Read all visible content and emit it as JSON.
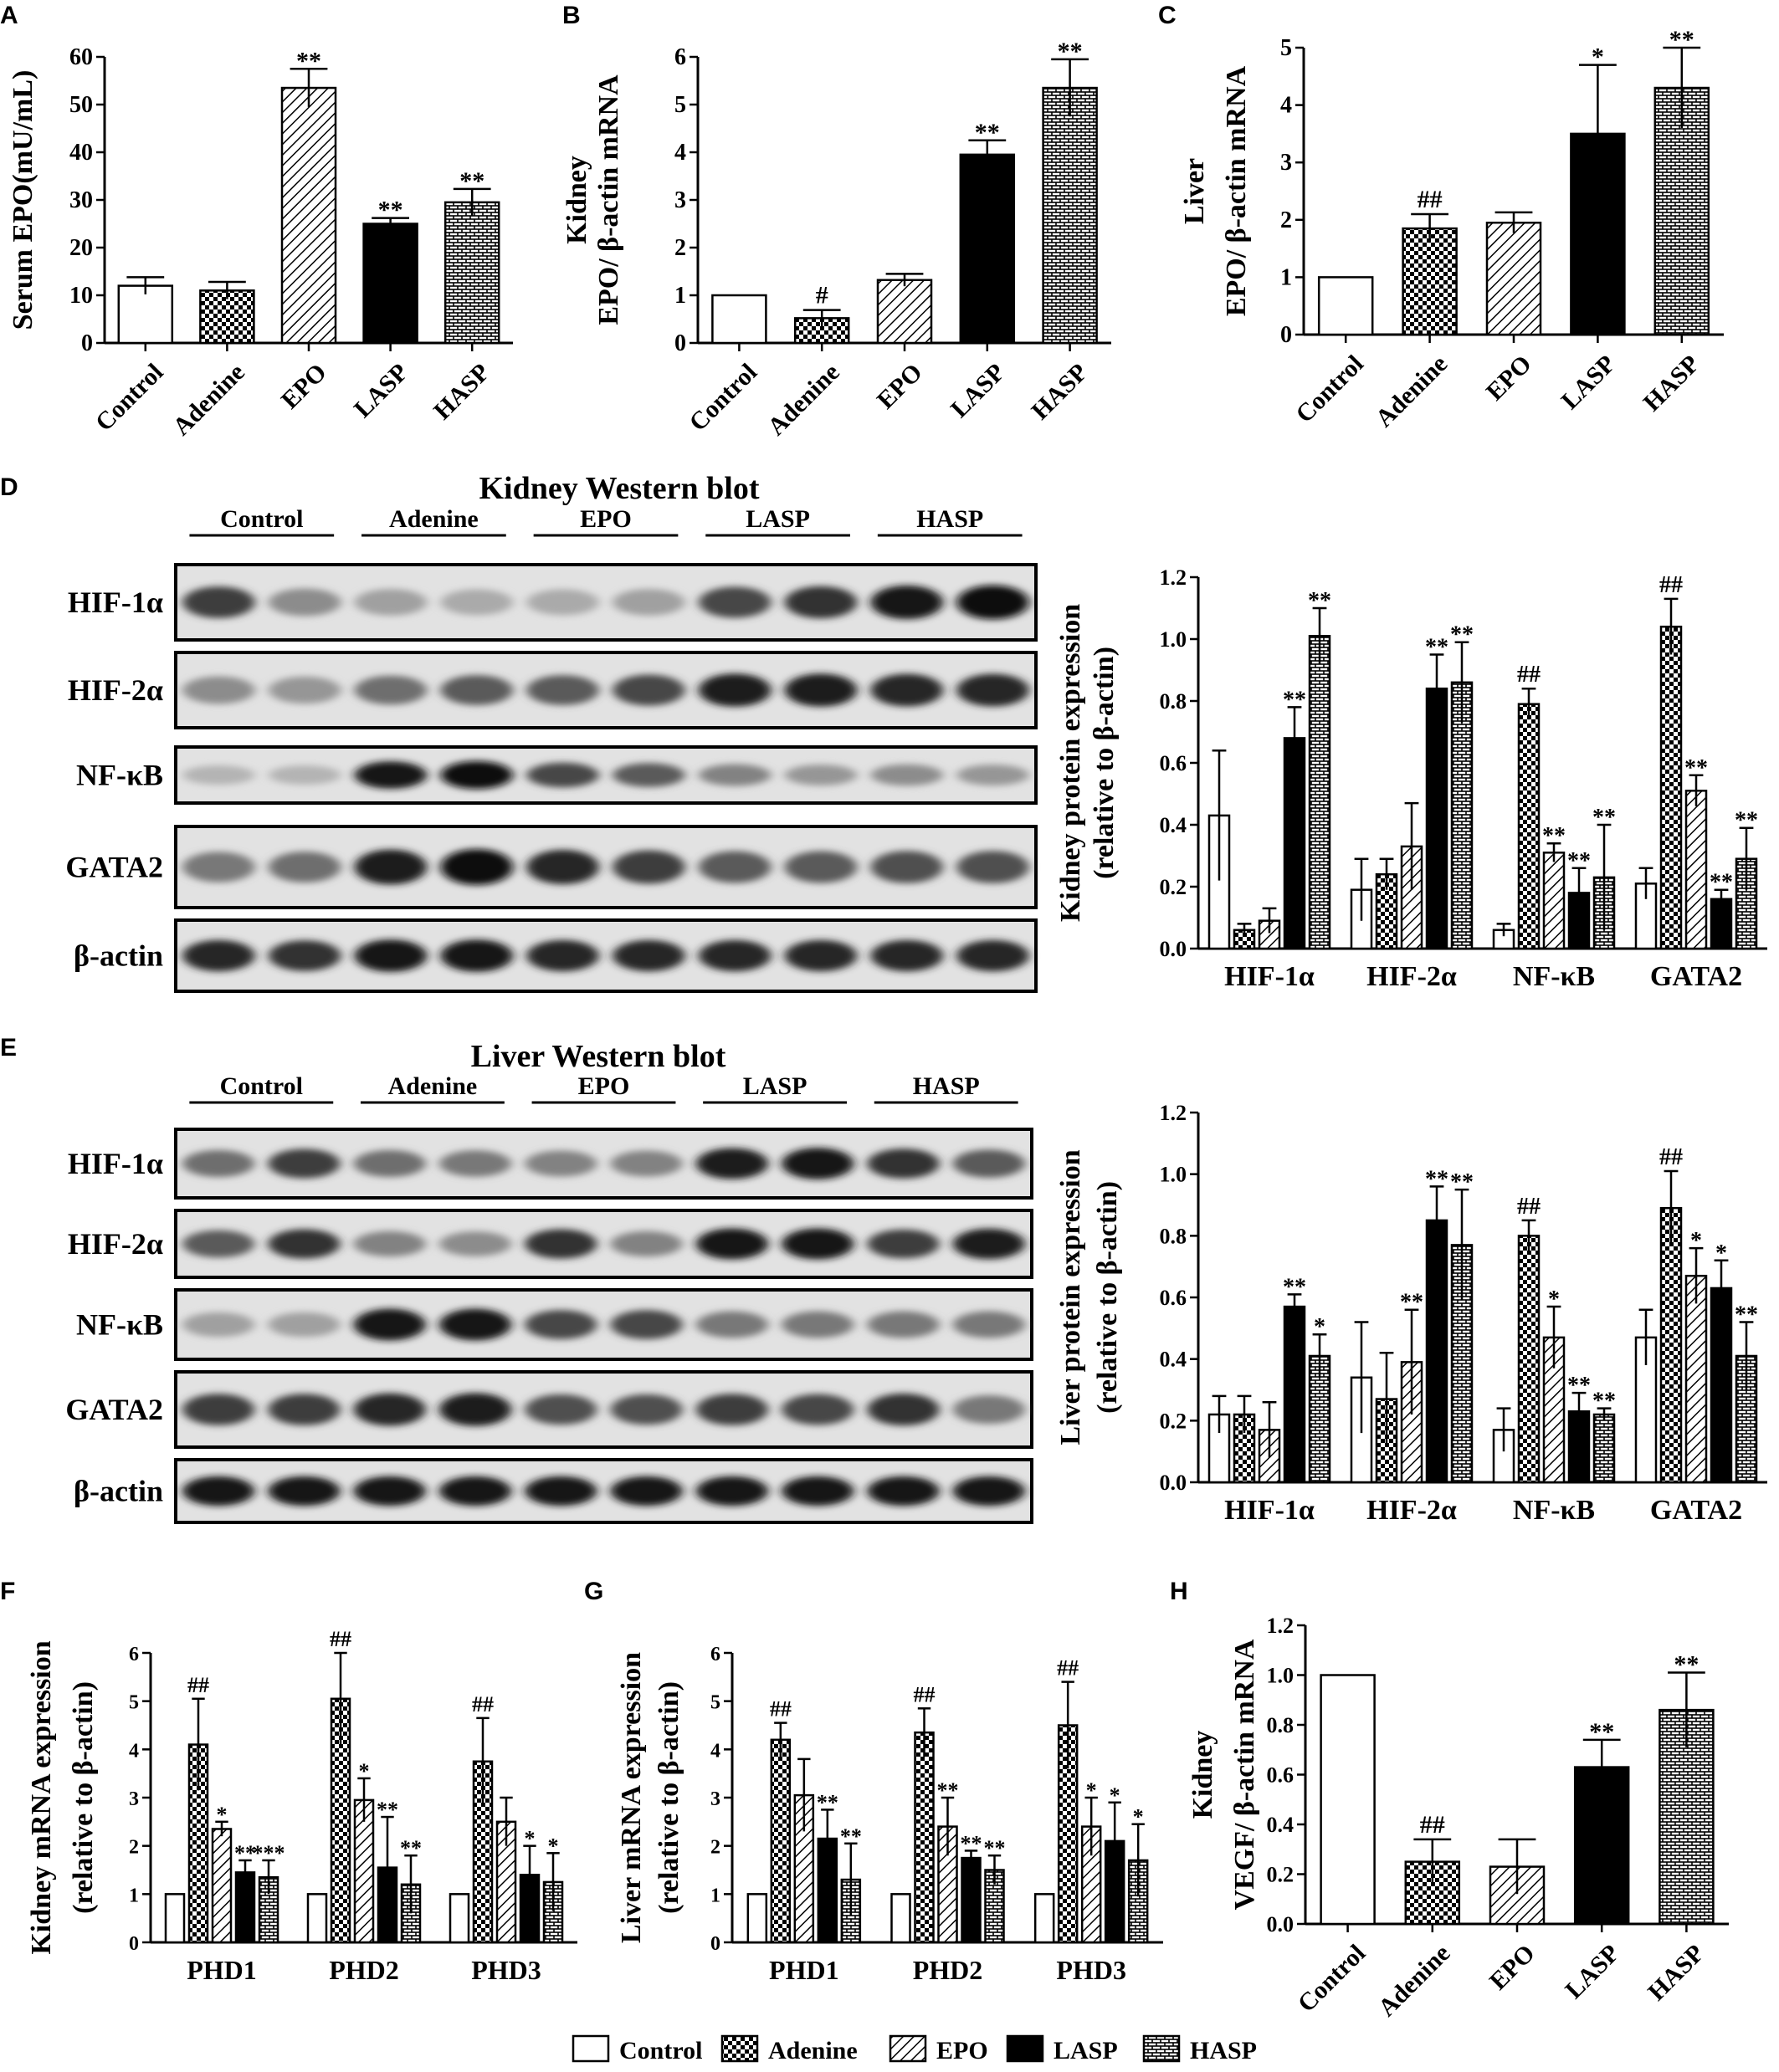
{
  "groups": [
    "Control",
    "Adenine",
    "EPO",
    "LASP",
    "HASP"
  ],
  "group_colors": {
    "Control": "#ffffff",
    "Adenine": "#000000",
    "EPO": "#000000",
    "LASP": "#000000",
    "HASP": "#000000"
  },
  "chart_data": [
    {
      "id": "A",
      "panel": "A",
      "type": "bar",
      "title": "",
      "ylabel": "Serum EPO(mU/mL)",
      "ylabel2": "",
      "ylim": [
        0,
        60
      ],
      "yticks": [
        0,
        10,
        20,
        30,
        40,
        50,
        60
      ],
      "categories": [
        "Control",
        "Adenine",
        "EPO",
        "LASP",
        "HASP"
      ],
      "values": [
        12,
        11,
        53.5,
        25,
        29.5
      ],
      "errors": [
        1.8,
        1.8,
        4,
        1.2,
        2.8
      ],
      "sig": [
        "",
        "",
        "**",
        "**",
        "**"
      ]
    },
    {
      "id": "B",
      "panel": "B",
      "type": "bar",
      "title": "",
      "ylabel": "Kidney",
      "ylabel2": "EPO/ β-actin mRNA",
      "ylim": [
        0,
        6
      ],
      "yticks": [
        0,
        1,
        2,
        3,
        4,
        5,
        6
      ],
      "categories": [
        "Control",
        "Adenine",
        "EPO",
        "LASP",
        "HASP"
      ],
      "values": [
        1,
        0.52,
        1.32,
        3.95,
        5.35
      ],
      "errors": [
        0,
        0.17,
        0.13,
        0.3,
        0.6
      ],
      "sig": [
        "",
        "#",
        "",
        "**",
        "**"
      ]
    },
    {
      "id": "C",
      "panel": "C",
      "type": "bar",
      "title": "",
      "ylabel": "Liver",
      "ylabel2": "EPO/ β-actin mRNA",
      "ylim": [
        0,
        5
      ],
      "yticks": [
        0,
        1,
        2,
        3,
        4,
        5
      ],
      "categories": [
        "Control",
        "Adenine",
        "EPO",
        "LASP",
        "HASP"
      ],
      "values": [
        1,
        1.85,
        1.95,
        3.5,
        4.3
      ],
      "errors": [
        0,
        0.25,
        0.18,
        1.2,
        0.7
      ],
      "sig": [
        "",
        "##",
        "",
        "*",
        "**"
      ]
    },
    {
      "id": "D",
      "panel": "D",
      "type": "bar",
      "title": "",
      "ylabel": "Kidney protein expression",
      "ylabel2": "(relative to β-actin)",
      "ylim": [
        0,
        1.2
      ],
      "yticks": [
        "0.0",
        "0.2",
        "0.4",
        "0.6",
        "0.8",
        "1.0",
        "1.2"
      ],
      "categories": [
        "HIF-1α",
        "HIF-2α",
        "NF-κB",
        "GATA2"
      ],
      "series": [
        {
          "name": "Control",
          "values": [
            0.43,
            0.19,
            0.06,
            0.21
          ],
          "errors": [
            0.21,
            0.1,
            0.02,
            0.05
          ],
          "sig": [
            "",
            "",
            "",
            ""
          ]
        },
        {
          "name": "Adenine",
          "values": [
            0.06,
            0.24,
            0.79,
            1.04
          ],
          "errors": [
            0.02,
            0.05,
            0.05,
            0.09
          ],
          "sig": [
            "",
            "",
            "##",
            "##"
          ]
        },
        {
          "name": "EPO",
          "values": [
            0.09,
            0.33,
            0.31,
            0.51
          ],
          "errors": [
            0.04,
            0.14,
            0.03,
            0.05
          ],
          "sig": [
            "",
            "",
            "**",
            "**"
          ]
        },
        {
          "name": "LASP",
          "values": [
            0.68,
            0.84,
            0.18,
            0.16
          ],
          "errors": [
            0.1,
            0.11,
            0.08,
            0.03
          ],
          "sig": [
            "**",
            "**",
            "**",
            "**"
          ]
        },
        {
          "name": "HASP",
          "values": [
            1.01,
            0.86,
            0.23,
            0.29
          ],
          "errors": [
            0.09,
            0.13,
            0.17,
            0.1
          ],
          "sig": [
            "**",
            "**",
            "**",
            "**"
          ]
        }
      ]
    },
    {
      "id": "E",
      "panel": "E",
      "type": "bar",
      "title": "",
      "ylabel": "Liver protein expression",
      "ylabel2": "(relative to β-actin)",
      "ylim": [
        0,
        1.2
      ],
      "yticks": [
        "0.0",
        "0.2",
        "0.4",
        "0.6",
        "0.8",
        "1.0",
        "1.2"
      ],
      "categories": [
        "HIF-1α",
        "HIF-2α",
        "NF-κB",
        "GATA2"
      ],
      "series": [
        {
          "name": "Control",
          "values": [
            0.22,
            0.34,
            0.17,
            0.47
          ],
          "errors": [
            0.06,
            0.18,
            0.07,
            0.09
          ],
          "sig": [
            "",
            "",
            "",
            ""
          ]
        },
        {
          "name": "Adenine",
          "values": [
            0.22,
            0.27,
            0.8,
            0.89
          ],
          "errors": [
            0.06,
            0.15,
            0.05,
            0.12
          ],
          "sig": [
            "",
            "",
            "##",
            "##"
          ]
        },
        {
          "name": "EPO",
          "values": [
            0.17,
            0.39,
            0.47,
            0.67
          ],
          "errors": [
            0.09,
            0.17,
            0.1,
            0.09
          ],
          "sig": [
            "",
            "**",
            "*",
            "*"
          ]
        },
        {
          "name": "LASP",
          "values": [
            0.57,
            0.85,
            0.23,
            0.63
          ],
          "errors": [
            0.04,
            0.11,
            0.06,
            0.09
          ],
          "sig": [
            "**",
            "**",
            "**",
            "*"
          ]
        },
        {
          "name": "HASP",
          "values": [
            0.41,
            0.77,
            0.22,
            0.41
          ],
          "errors": [
            0.07,
            0.18,
            0.02,
            0.11
          ],
          "sig": [
            "*",
            "**",
            "**",
            "**"
          ]
        }
      ]
    },
    {
      "id": "F",
      "panel": "F",
      "type": "bar",
      "title": "",
      "ylabel": "Kidney mRNA expression",
      "ylabel2": "(relative to β-actin)",
      "ylim": [
        0,
        6
      ],
      "yticks": [
        0,
        1,
        2,
        3,
        4,
        5,
        6
      ],
      "categories": [
        "PHD1",
        "PHD2",
        "PHD3"
      ],
      "series": [
        {
          "name": "Control",
          "values": [
            1,
            1,
            1
          ],
          "errors": [
            0,
            0,
            0
          ],
          "sig": [
            "",
            "",
            ""
          ]
        },
        {
          "name": "Adenine",
          "values": [
            4.1,
            5.05,
            3.75
          ],
          "errors": [
            0.95,
            0.95,
            0.9
          ],
          "sig": [
            "##",
            "##",
            "##"
          ]
        },
        {
          "name": "EPO",
          "values": [
            2.35,
            2.95,
            2.5
          ],
          "errors": [
            0.15,
            0.45,
            0.5
          ],
          "sig": [
            "*",
            "*",
            ""
          ]
        },
        {
          "name": "LASP",
          "values": [
            1.45,
            1.55,
            1.4
          ],
          "errors": [
            0.25,
            1.05,
            0.6
          ],
          "sig": [
            "**",
            "**",
            "*"
          ]
        },
        {
          "name": "HASP",
          "values": [
            1.35,
            1.2,
            1.25
          ],
          "errors": [
            0.35,
            0.6,
            0.6
          ],
          "sig": [
            "***",
            "**",
            "*"
          ]
        }
      ]
    },
    {
      "id": "G",
      "panel": "G",
      "type": "bar",
      "title": "",
      "ylabel": "Liver mRNA expression",
      "ylabel2": "(relative to β-actin)",
      "ylim": [
        0,
        6
      ],
      "yticks": [
        0,
        1,
        2,
        3,
        4,
        5,
        6
      ],
      "categories": [
        "PHD1",
        "PHD2",
        "PHD3"
      ],
      "series": [
        {
          "name": "Control",
          "values": [
            1,
            1,
            1
          ],
          "errors": [
            0,
            0,
            0
          ],
          "sig": [
            "",
            "",
            ""
          ]
        },
        {
          "name": "Adenine",
          "values": [
            4.2,
            4.35,
            4.5
          ],
          "errors": [
            0.35,
            0.5,
            0.9
          ],
          "sig": [
            "##",
            "##",
            "##"
          ]
        },
        {
          "name": "EPO",
          "values": [
            3.05,
            2.4,
            2.4
          ],
          "errors": [
            0.75,
            0.6,
            0.6
          ],
          "sig": [
            "",
            "**",
            "*"
          ]
        },
        {
          "name": "LASP",
          "values": [
            2.15,
            1.75,
            2.1
          ],
          "errors": [
            0.6,
            0.15,
            0.8
          ],
          "sig": [
            "**",
            "**",
            "*"
          ]
        },
        {
          "name": "HASP",
          "values": [
            1.3,
            1.5,
            1.7
          ],
          "errors": [
            0.75,
            0.3,
            0.75
          ],
          "sig": [
            "**",
            "**",
            "*"
          ]
        }
      ]
    },
    {
      "id": "H",
      "panel": "H",
      "type": "bar",
      "title": "",
      "ylabel": "Kidney",
      "ylabel2": "VEGF/ β-actin mRNA",
      "ylim": [
        0,
        1.2
      ],
      "yticks": [
        "0.0",
        "0.2",
        "0.4",
        "0.6",
        "0.8",
        "1.0",
        "1.2"
      ],
      "categories": [
        "Control",
        "Adenine",
        "EPO",
        "LASP",
        "HASP"
      ],
      "values": [
        1,
        0.25,
        0.23,
        0.63,
        0.86
      ],
      "errors": [
        0,
        0.09,
        0.11,
        0.11,
        0.15
      ],
      "sig": [
        "",
        "##",
        "",
        "**",
        "**"
      ]
    }
  ],
  "blots": [
    {
      "id": "kidney",
      "panel": "D",
      "title": "Kidney  Western  blot",
      "groups": [
        "Control",
        "Adenine",
        "EPO",
        "LASP",
        "HASP"
      ],
      "rows": [
        {
          "label": "HIF-1α",
          "intensity": [
            0.75,
            0.35,
            0.25,
            0.2,
            0.2,
            0.25,
            0.7,
            0.8,
            0.95,
            1.0
          ]
        },
        {
          "label": "HIF-2α",
          "intensity": [
            0.35,
            0.3,
            0.5,
            0.6,
            0.6,
            0.7,
            0.9,
            0.9,
            0.85,
            0.85
          ]
        },
        {
          "label": "NF-κB",
          "intensity": [
            0.15,
            0.15,
            0.95,
            1.0,
            0.7,
            0.6,
            0.4,
            0.3,
            0.35,
            0.3
          ]
        },
        {
          "label": "GATA2",
          "intensity": [
            0.45,
            0.5,
            0.9,
            1.0,
            0.85,
            0.75,
            0.6,
            0.6,
            0.65,
            0.65
          ]
        },
        {
          "label": "β-actin",
          "intensity": [
            0.85,
            0.8,
            0.95,
            0.95,
            0.85,
            0.85,
            0.85,
            0.85,
            0.85,
            0.85
          ]
        }
      ]
    },
    {
      "id": "liver",
      "panel": "E",
      "title": "Liver  Western  blot",
      "groups": [
        "Control",
        "Adenine",
        "EPO",
        "LASP",
        "HASP"
      ],
      "rows": [
        {
          "label": "HIF-1α",
          "intensity": [
            0.5,
            0.75,
            0.5,
            0.45,
            0.4,
            0.4,
            0.9,
            0.95,
            0.8,
            0.6
          ]
        },
        {
          "label": "HIF-2α",
          "intensity": [
            0.6,
            0.8,
            0.4,
            0.35,
            0.8,
            0.4,
            0.95,
            0.95,
            0.75,
            0.9
          ]
        },
        {
          "label": "NF-κB",
          "intensity": [
            0.25,
            0.25,
            0.95,
            0.95,
            0.7,
            0.7,
            0.45,
            0.45,
            0.45,
            0.45
          ]
        },
        {
          "label": "GATA2",
          "intensity": [
            0.75,
            0.75,
            0.85,
            0.9,
            0.65,
            0.65,
            0.75,
            0.7,
            0.8,
            0.45
          ]
        },
        {
          "label": "β-actin",
          "intensity": [
            0.95,
            0.95,
            0.95,
            0.95,
            0.95,
            0.95,
            0.95,
            0.95,
            0.95,
            0.95
          ]
        }
      ]
    }
  ]
}
